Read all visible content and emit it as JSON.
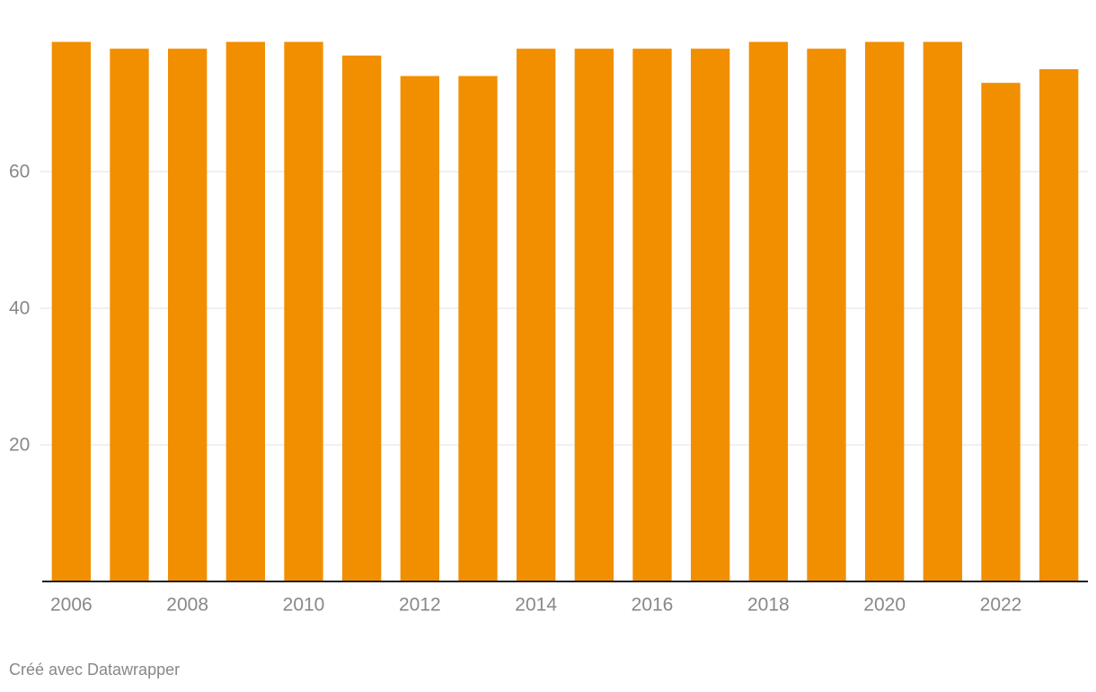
{
  "chart_data": {
    "type": "bar",
    "categories": [
      "2006",
      null,
      "2008",
      null,
      "2010",
      null,
      "2012",
      null,
      "2014",
      null,
      "2016",
      null,
      "2018",
      null,
      "2020",
      null,
      "2022",
      null
    ],
    "values": [
      79,
      78,
      78,
      79,
      79,
      77,
      74,
      74,
      78,
      78,
      78,
      78,
      79,
      78,
      79,
      79,
      73,
      75
    ],
    "color": "#f18f01",
    "ylim": [
      0,
      80
    ],
    "yticks": [
      20,
      40,
      60
    ],
    "grid": true,
    "credit": "Créé avec Datawrapper"
  }
}
